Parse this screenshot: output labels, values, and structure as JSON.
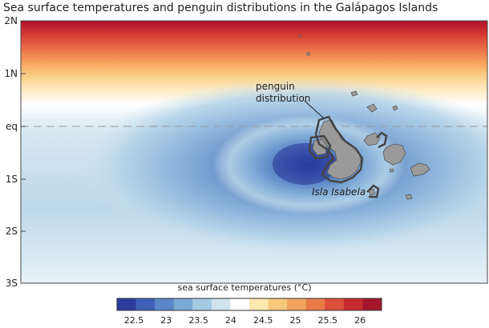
{
  "title": "Sea surface temperatures and penguin distributions in the Galápagos Islands",
  "lat_axis": {
    "labels": [
      "2N",
      "1N",
      "eq",
      "1S",
      "2S",
      "3S"
    ]
  },
  "annotations": {
    "penguin_line1": "penguin",
    "penguin_line2": "distribution",
    "island": "Isla Isabela"
  },
  "colorbar": {
    "title": "sea surface temperatures (°C)",
    "ticks": [
      "22.5",
      "23",
      "23.5",
      "24",
      "24.5",
      "25",
      "25.5",
      "26"
    ],
    "colors": [
      "#2d3d9c",
      "#3f5fb8",
      "#5b86c9",
      "#7aa9d6",
      "#a5cbe3",
      "#cfe4ef",
      "#ffffff",
      "#fde8b0",
      "#f7c97a",
      "#f2a45c",
      "#e97b48",
      "#dc4f3a",
      "#c52a2e",
      "#a6162a"
    ]
  }
}
